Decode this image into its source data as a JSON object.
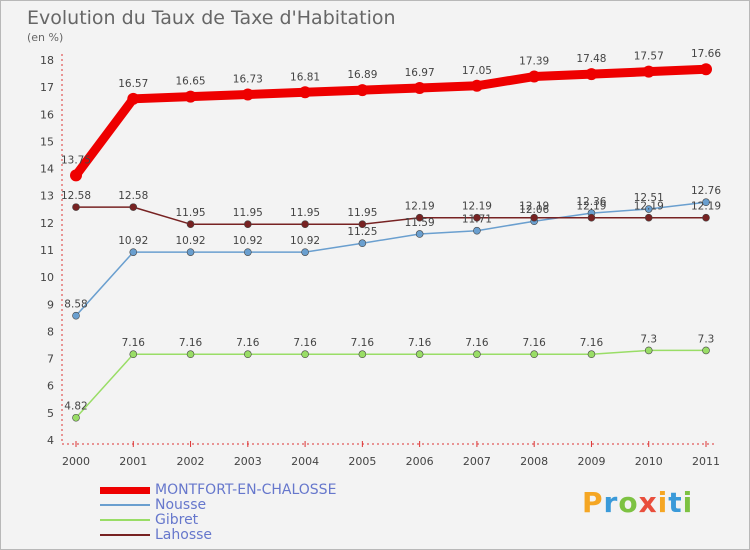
{
  "header": {
    "title": "Evolution du Taux de Taxe d'Habitation",
    "unit": "(en %)"
  },
  "logo": {
    "letters": [
      "P",
      "r",
      "o",
      "x",
      "i",
      "t",
      "i"
    ],
    "colors": [
      "#f5a623",
      "#3a9ad9",
      "#7dc242",
      "#e94e3c",
      "#f5a623",
      "#3a9ad9",
      "#7dc242"
    ]
  },
  "chart_data": {
    "type": "line",
    "x": [
      "2000",
      "2001",
      "2002",
      "2003",
      "2004",
      "2005",
      "2006",
      "2007",
      "2008",
      "2009",
      "2010",
      "2011"
    ],
    "ylim": [
      4,
      18
    ],
    "yticks": [
      4,
      5,
      6,
      7,
      8,
      9,
      10,
      11,
      12,
      13,
      14,
      15,
      16,
      17,
      18
    ],
    "grid": false,
    "legend_position": "bottom-left",
    "series": [
      {
        "name": "MONTFORT-EN-CHALOSSE",
        "color": "#ee0000",
        "values": [
          13.75,
          16.57,
          16.65,
          16.73,
          16.81,
          16.89,
          16.97,
          17.05,
          17.39,
          17.48,
          17.57,
          17.66
        ],
        "labels": [
          "13.75",
          "16.57",
          "16.65",
          "16.73",
          "16.81",
          "16.89",
          "16.97",
          "17.05",
          "17.39",
          "17.48",
          "17.57",
          "17.66"
        ]
      },
      {
        "name": "Nousse",
        "color": "#6a9fcf",
        "values": [
          8.58,
          10.92,
          10.92,
          10.92,
          10.92,
          11.25,
          11.59,
          11.71,
          12.06,
          12.36,
          12.51,
          12.76
        ],
        "labels": [
          "8.58",
          "10.92",
          "10.92",
          "10.92",
          "10.92",
          "11.25",
          "11.59",
          "11.71",
          "12.06",
          "12.36",
          "12.51",
          "12.76"
        ]
      },
      {
        "name": "Gibret",
        "color": "#99dd66",
        "values": [
          4.82,
          7.16,
          7.16,
          7.16,
          7.16,
          7.16,
          7.16,
          7.16,
          7.16,
          7.16,
          7.3,
          7.3
        ],
        "labels": [
          "4.82",
          "7.16",
          "7.16",
          "7.16",
          "7.16",
          "7.16",
          "7.16",
          "7.16",
          "7.16",
          "7.16",
          "7.3",
          "7.3"
        ]
      },
      {
        "name": "Lahosse",
        "color": "#772222",
        "values": [
          12.58,
          12.58,
          11.95,
          11.95,
          11.95,
          11.95,
          12.19,
          12.19,
          12.19,
          12.19,
          12.19,
          12.19
        ],
        "labels": [
          "12.58",
          "12.58",
          "11.95",
          "11.95",
          "11.95",
          "11.95",
          "12.19",
          "12.19",
          "12.19",
          "12.19",
          "12.19",
          "12.19"
        ]
      }
    ]
  }
}
